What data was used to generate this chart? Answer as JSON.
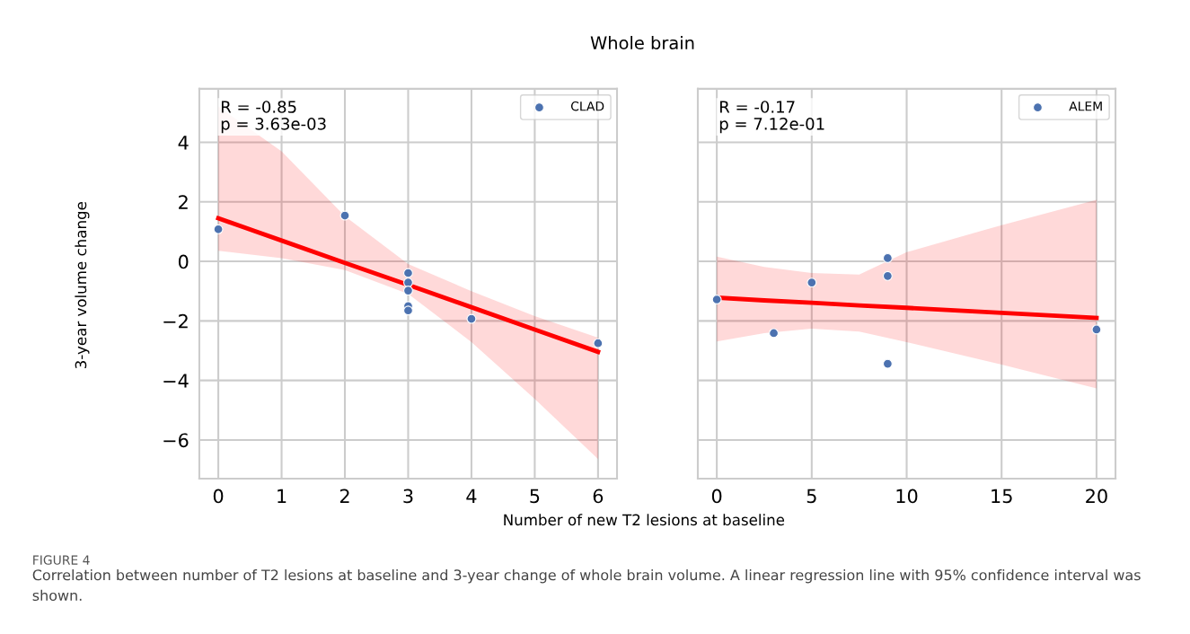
{
  "chart_data": [
    {
      "type": "scatter",
      "title": "Whole brain",
      "xlabel": "Number of new T2 lesions at baseline",
      "ylabel": "3-year volume change",
      "annotations": [
        "R = -0.85\np = 3.63e-03",
        "FIGURE 4",
        "Correlation between number of T2 lesions at baseline and 3-year change of whole brain volume. A linear regression line with 95% confidence interval was shown."
      ],
      "series": [
        {
          "name": "CLAD",
          "type": "scatter",
          "color": "#4c72b0",
          "x": [
            0,
            2,
            3,
            3,
            3,
            3,
            3,
            4,
            6
          ],
          "values": [
            1.08,
            1.54,
            -0.39,
            -0.71,
            -0.98,
            -1.5,
            -1.65,
            -1.93,
            -2.75
          ]
        },
        {
          "type": "line",
          "color": "#ff0000",
          "x": [
            0,
            1,
            2,
            3,
            4,
            5,
            6
          ],
          "values": [
            1.45,
            0.7,
            -0.05,
            -0.79,
            -1.54,
            -2.29,
            -3.04
          ],
          "lower": [
            0.36,
            0.11,
            -0.29,
            -1.09,
            -2.71,
            -4.62,
            -6.64
          ],
          "upper": [
            5.2,
            3.7,
            1.52,
            -0.09,
            -1.0,
            -1.84,
            -2.56
          ]
        }
      ],
      "xlim": [
        -0.3,
        6.3
      ],
      "xticks": [
        0,
        1,
        2,
        3,
        4,
        5,
        6
      ],
      "ylim": [
        -7.3,
        5.8
      ],
      "yticks": [
        {
          "value": -6,
          "label": "−6"
        },
        {
          "value": -4,
          "label": "−4"
        },
        {
          "value": -2,
          "label": "−2"
        },
        0,
        2,
        4
      ],
      "grid": true,
      "legend": "top right"
    },
    {
      "type": "scatter",
      "annotations": [
        "R = -0.17\np = 7.12e-01"
      ],
      "series": [
        {
          "name": "ALEM",
          "type": "scatter",
          "color": "#4c72b0",
          "x": [
            0,
            3,
            5,
            9,
            9,
            9,
            20
          ],
          "values": [
            -1.28,
            -2.41,
            -0.71,
            0.11,
            -0.49,
            -3.44,
            -2.29
          ]
        },
        {
          "type": "line",
          "color": "#ff0000",
          "x": [
            0,
            2.5,
            5,
            7.5,
            10,
            15,
            20
          ],
          "values": [
            -1.22,
            -1.31,
            -1.39,
            -1.48,
            -1.56,
            -1.73,
            -1.9
          ],
          "lower": [
            -2.69,
            -2.41,
            -2.26,
            -2.36,
            -2.71,
            -3.47,
            -4.27
          ],
          "upper": [
            0.16,
            -0.19,
            -0.39,
            -0.44,
            0.31,
            1.22,
            2.07
          ]
        }
      ],
      "xlim": [
        -1.0,
        21.0
      ],
      "xticks": [
        0,
        5,
        10,
        15,
        20
      ],
      "ylim": [
        -7.3,
        5.8
      ],
      "yticks": [
        -6,
        -4,
        -2,
        0,
        2,
        4
      ],
      "grid": true,
      "legend": "top right",
      "tick_labels": "x"
    }
  ]
}
